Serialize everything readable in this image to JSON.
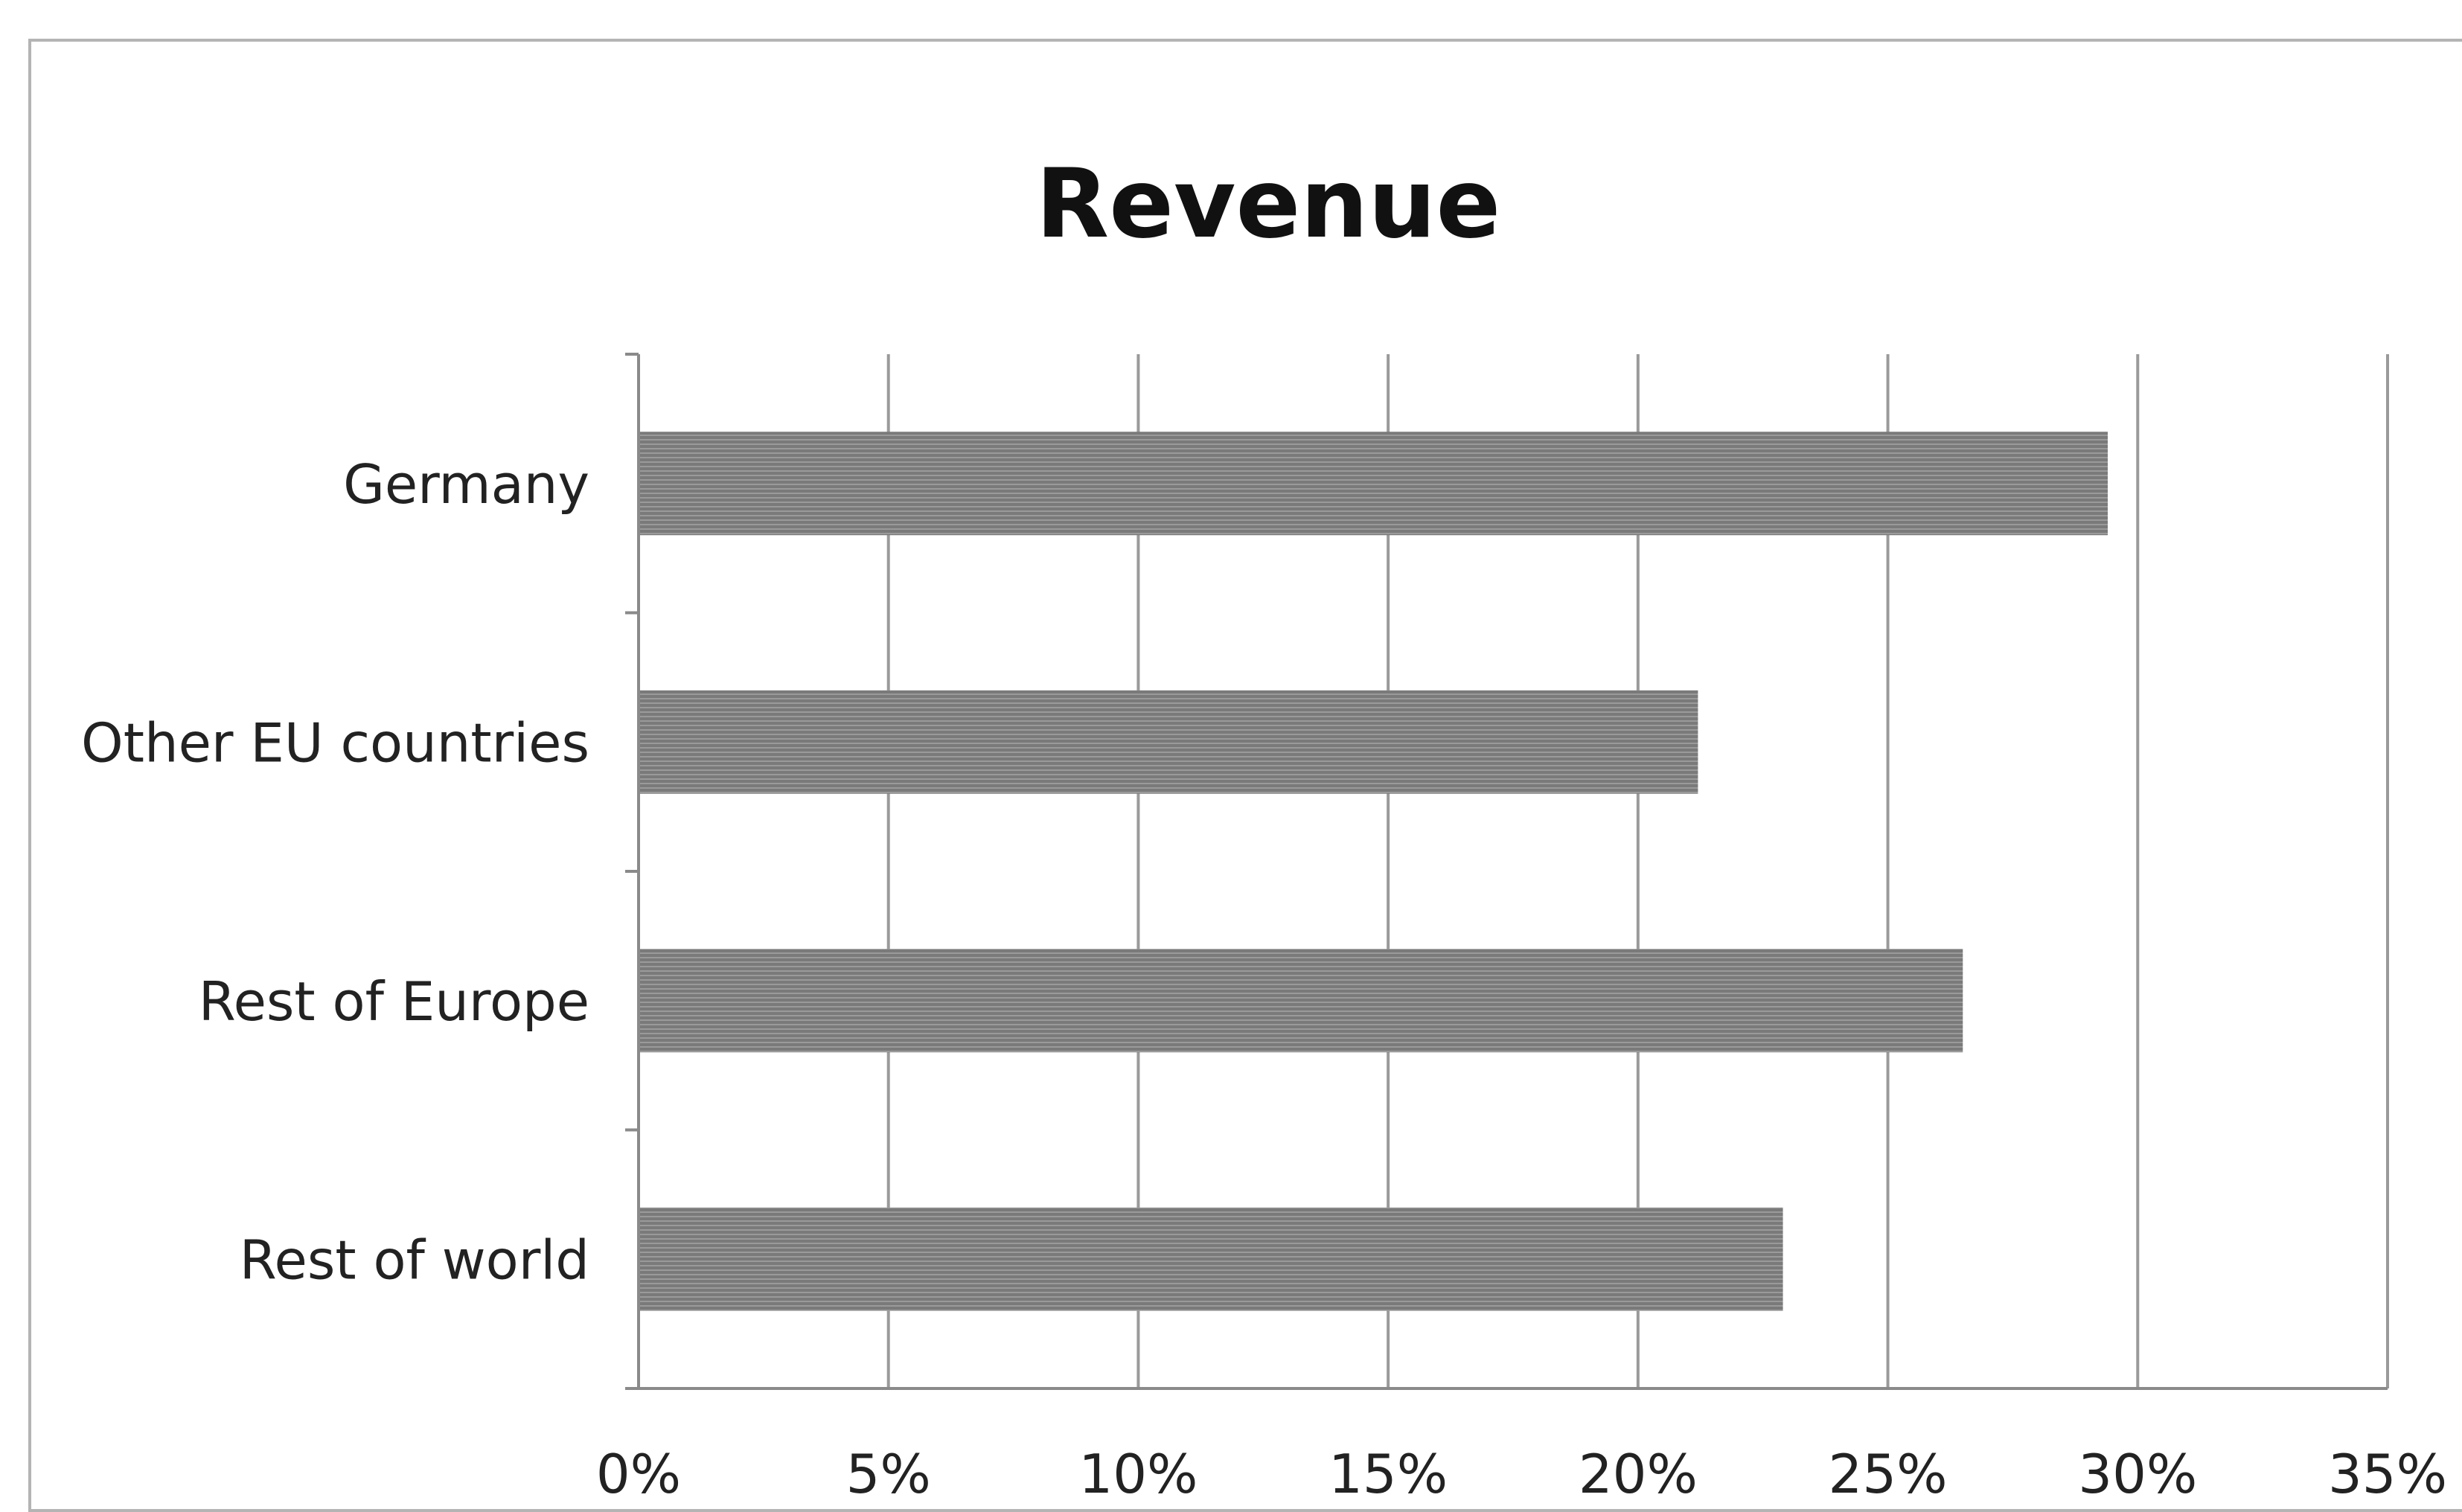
{
  "chart_data": {
    "type": "bar",
    "orientation": "horizontal",
    "title": "Revenue",
    "xlabel": "",
    "ylabel": "",
    "categories": [
      "Germany",
      "Other EU countries",
      "Rest of Europe",
      "Rest of world"
    ],
    "values": [
      29.4,
      21.2,
      26.5,
      22.9
    ],
    "xlim": [
      0,
      35
    ],
    "ticks": [
      0,
      5,
      10,
      15,
      20,
      25,
      30,
      35
    ],
    "tick_labels": [
      "0%",
      "5%",
      "10%",
      "15%",
      "20%",
      "25%",
      "30%",
      "35%"
    ],
    "grid": true,
    "legend": "none",
    "bar_color": "#7a7a7a"
  }
}
